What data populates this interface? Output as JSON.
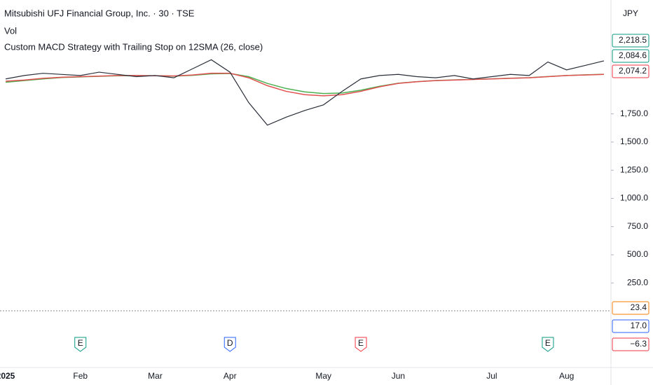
{
  "chart_data": {
    "type": "line",
    "title": "Mitsubishi UFJ Financial Group, Inc. · 30 · TSE",
    "subtitles": [
      "Vol",
      "Custom MACD Strategy with Trailing Stop on 12SMA (26, close)"
    ],
    "currency": "JPY",
    "categories": [
      "2025",
      null,
      null,
      null,
      "Feb",
      null,
      null,
      null,
      "Mar",
      null,
      null,
      null,
      "Apr",
      null,
      null,
      null,
      null,
      "May",
      null,
      null,
      null,
      "Jun",
      null,
      null,
      null,
      null,
      "Jul",
      null,
      null,
      null,
      "Aug",
      null,
      null
    ],
    "series": [
      {
        "color": "#2a2e39",
        "values": [
          2060,
          2090,
          2110,
          2100,
          2090,
          2120,
          2100,
          2080,
          2090,
          2070,
          2150,
          2230,
          2120,
          1850,
          1650,
          1720,
          1780,
          1830,
          1950,
          2060,
          2090,
          2100,
          2080,
          2070,
          2090,
          2060,
          2080,
          2100,
          2090,
          2210,
          2140,
          2180,
          2220
        ]
      },
      {
        "color": "#e05050",
        "values": [
          2040,
          2050,
          2065,
          2075,
          2080,
          2085,
          2090,
          2090,
          2088,
          2086,
          2095,
          2110,
          2110,
          2070,
          2000,
          1950,
          1920,
          1910,
          1920,
          1950,
          1990,
          2020,
          2035,
          2045,
          2050,
          2055,
          2060,
          2065,
          2070,
          2080,
          2090,
          2095,
          2100
        ]
      },
      {
        "color": "#4caf50",
        "values": [
          2030,
          2045,
          2060,
          2072,
          2078,
          2083,
          2088,
          2089,
          2088,
          2085,
          2092,
          2105,
          2108,
          2080,
          2020,
          1975,
          1945,
          1930,
          1935,
          1960,
          1995,
          2022,
          2036,
          2046,
          2051,
          2056,
          2061,
          2066,
          2071,
          2081,
          2090,
          2096,
          2101
        ]
      }
    ],
    "ylim": [
      -500,
      2760
    ],
    "yticks": [
      {
        "value": 1750,
        "label": "1,750.0"
      },
      {
        "value": 1500,
        "label": "1,500.0"
      },
      {
        "value": 1250,
        "label": "1,250.0"
      },
      {
        "value": 1000,
        "label": "1,000.0"
      },
      {
        "value": 750,
        "label": "750.0"
      },
      {
        "value": 500,
        "label": "500.0"
      },
      {
        "value": 250,
        "label": "250.0"
      }
    ],
    "price_labels": [
      {
        "label": "2,218.5",
        "color": "#089981"
      },
      {
        "label": "2,084.6",
        "color": "#089981"
      },
      {
        "label": "2,074.2",
        "color": "#f23645"
      }
    ],
    "indicator_labels": [
      {
        "label": "23.4",
        "color": "#f57c00"
      },
      {
        "label": "17.0",
        "color": "#2962ff"
      },
      {
        "label": "−6.3",
        "color": "#f23645"
      }
    ],
    "events": [
      {
        "label": "E",
        "category": 4,
        "color": "#089981"
      },
      {
        "label": "D",
        "category": 12,
        "color": "#2962ff"
      },
      {
        "label": "E",
        "category": 19,
        "color": "#f23645"
      },
      {
        "label": "E",
        "category": 29,
        "color": "#089981"
      }
    ]
  }
}
